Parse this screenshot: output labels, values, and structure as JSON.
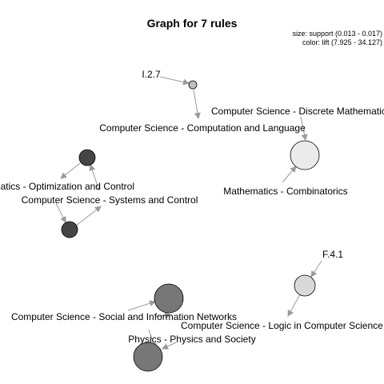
{
  "title": "Graph for 7 rules",
  "legend": {
    "size": "size: support (0.013 - 0.017)",
    "color": "color: lift (7.925 - 34.127)"
  },
  "labels": {
    "i27": "I.2.7",
    "comp_lang": "Computer Science - Computation and Language",
    "discrete_math": "Computer Science - Discrete Mathematics",
    "combinatorics": "Mathematics - Combinatorics",
    "opt_control": "Mathematics - Optimization and Control",
    "sys_control": "Computer Science - Systems and Control",
    "f41": "F.4.1",
    "logic_cs": "Computer Science - Logic in Computer Science",
    "social_net": "Computer Science - Social and Information Networks",
    "physics_society": "Physics - Physics and Society"
  },
  "rule_nodes": [
    {
      "id": "rule-1",
      "color": "#bfbfbf"
    },
    {
      "id": "rule-2",
      "color": "#ebebeb"
    },
    {
      "id": "rule-3",
      "color": "#454545"
    },
    {
      "id": "rule-4",
      "color": "#454545"
    },
    {
      "id": "rule-5",
      "color": "#d9d9d9"
    },
    {
      "id": "rule-6",
      "color": "#777777"
    },
    {
      "id": "rule-7",
      "color": "#777777"
    }
  ],
  "colors": {
    "edge": "#9a9a9a"
  }
}
